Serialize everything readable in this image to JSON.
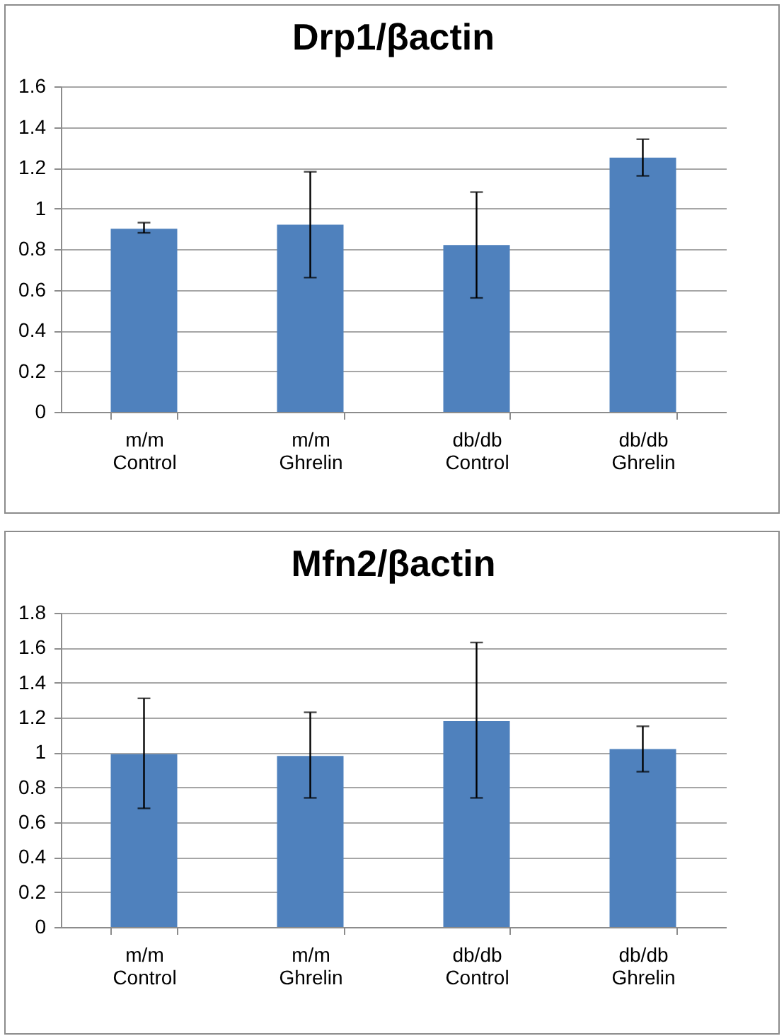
{
  "chart_data": [
    {
      "type": "bar",
      "title": "Drp1/βactin",
      "categories": [
        "m/m Control",
        "m/m Ghrelin",
        "db/db Control",
        "db/db Ghrelin"
      ],
      "values": [
        0.9,
        0.92,
        0.82,
        1.25
      ],
      "errors": [
        [
          0.88,
          0.93
        ],
        [
          0.66,
          1.18
        ],
        [
          0.56,
          1.08
        ],
        [
          1.16,
          1.34
        ]
      ],
      "color": "#4f81bd",
      "ylim": [
        0,
        1.6
      ],
      "yticks": [
        0,
        0.2,
        0.4,
        0.6,
        0.8,
        1,
        1.2,
        1.4,
        1.6
      ],
      "grid": "y"
    },
    {
      "type": "bar",
      "title": "Mfn2/βactin",
      "categories": [
        "m/m Control",
        "m/m Ghrelin",
        "db/db Control",
        "db/db Ghrelin"
      ],
      "values": [
        0.99,
        0.98,
        1.18,
        1.02
      ],
      "errors": [
        [
          0.68,
          1.31
        ],
        [
          0.74,
          1.23
        ],
        [
          0.74,
          1.63
        ],
        [
          0.89,
          1.15
        ]
      ],
      "color": "#4f81bd",
      "ylim": [
        0,
        1.8
      ],
      "yticks": [
        0,
        0.2,
        0.4,
        0.6,
        0.8,
        1,
        1.2,
        1.4,
        1.6,
        1.8
      ],
      "grid": "y"
    }
  ]
}
